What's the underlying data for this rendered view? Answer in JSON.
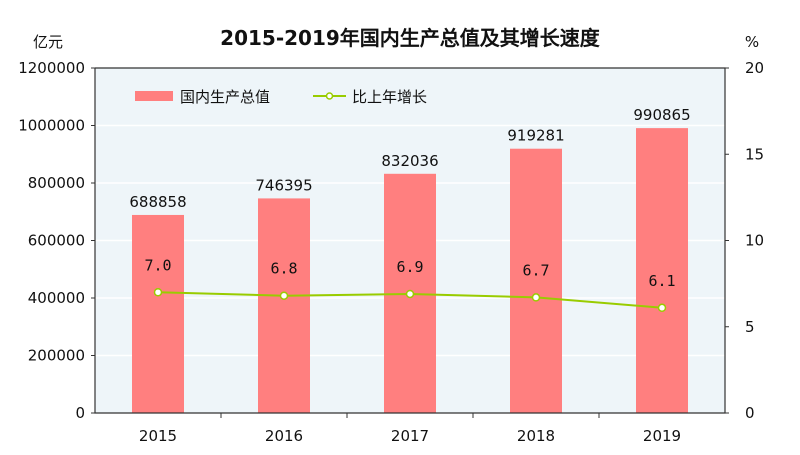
{
  "chart_data": {
    "type": "bar",
    "title": "2015-2019年国内生产总值及其增长速度",
    "ylabel_left": "亿元",
    "ylabel_right": "%",
    "categories": [
      "2015",
      "2016",
      "2017",
      "2018",
      "2019"
    ],
    "ylim_left": [
      0,
      1200000
    ],
    "yticks_left": [
      "0",
      "200000",
      "400000",
      "600000",
      "800000",
      "1000000",
      "1200000"
    ],
    "ylim_right": [
      0,
      20
    ],
    "yticks_right": [
      "0",
      "5",
      "10",
      "15",
      "20"
    ],
    "grid": true,
    "legend_placement": "top-left",
    "series": [
      {
        "name": "国内生产总值",
        "type": "bar",
        "axis": "left",
        "color": "#FF7F7F",
        "values": [
          688858,
          746395,
          832036,
          919281,
          990865
        ],
        "labels": [
          "688858",
          "746395",
          "832036",
          "919281",
          "990865"
        ]
      },
      {
        "name": "比上年增长",
        "type": "line",
        "axis": "right",
        "color": "#99CC00",
        "values": [
          7.0,
          6.8,
          6.9,
          6.7,
          6.1
        ],
        "labels": [
          "7.0",
          "6.8",
          "6.9",
          "6.7",
          "6.1"
        ]
      }
    ],
    "plot_background": "#EEF5F9"
  }
}
